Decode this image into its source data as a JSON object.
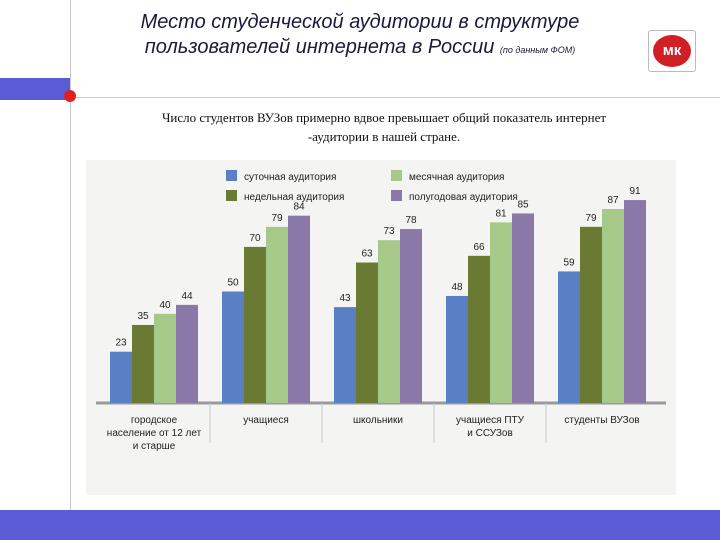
{
  "header": {
    "title_line1": "Место студенческой аудитории в структуре",
    "title_line2": "пользователей интернета в России",
    "title_source": "(по данным ФОМ)",
    "logo_text": "мк"
  },
  "subtitle": {
    "line1": "Число студентов ВУЗов примерно вдвое превышает общий показатель интернет",
    "line2": "-аудитории в нашей стране."
  },
  "chart_data": {
    "type": "bar",
    "categories": [
      [
        "городское",
        "население от 12 лет",
        "и старше"
      ],
      [
        "учащиеся"
      ],
      [
        "школьники"
      ],
      [
        "учащиеся ПТУ",
        "и ССУЗов"
      ],
      [
        "студенты ВУЗов"
      ]
    ],
    "series": [
      {
        "name": "суточная аудитория",
        "color": "#5b7fc4",
        "values": [
          23,
          50,
          43,
          48,
          59
        ]
      },
      {
        "name": "недельная аудитория",
        "color": "#6b7a32",
        "values": [
          35,
          70,
          63,
          66,
          79
        ]
      },
      {
        "name": "месячная аудитория",
        "color": "#a6c98a",
        "values": [
          40,
          79,
          73,
          81,
          87
        ]
      },
      {
        "name": "полугодовая аудитория",
        "color": "#8a78a8",
        "values": [
          44,
          84,
          78,
          85,
          91
        ]
      }
    ],
    "ylim": [
      0,
      100
    ],
    "grid": false,
    "legend_position": "top"
  },
  "colors": {
    "accent": "#5b5bd6",
    "logo_red": "#d11f26"
  }
}
